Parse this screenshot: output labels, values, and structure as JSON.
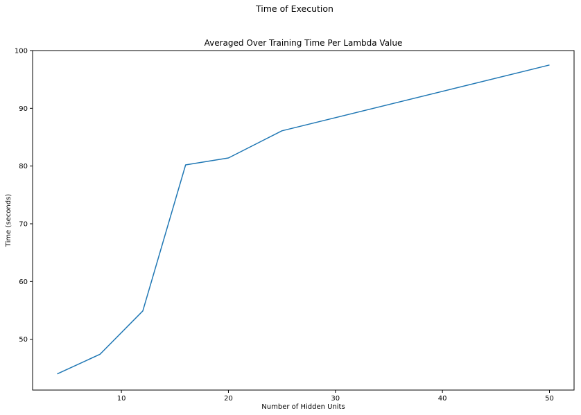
{
  "figure": {
    "suptitle": "Time of Execution"
  },
  "chart_data": {
    "type": "line",
    "title": "Averaged Over Training Time Per Lambda Value",
    "xlabel": "Number of Hidden Units",
    "ylabel": "Time (seconds)",
    "xlim": [
      1.7,
      52.3
    ],
    "ylim": [
      41.2,
      100
    ],
    "xticks": [
      10,
      20,
      30,
      40,
      50
    ],
    "yticks": [
      50,
      60,
      70,
      80,
      90,
      100
    ],
    "grid": false,
    "series": [
      {
        "color": "#1f77b4",
        "x": [
          4,
          8,
          12,
          16,
          20,
          25,
          50
        ],
        "y": [
          44.0,
          47.4,
          54.9,
          80.2,
          81.4,
          86.1,
          97.5
        ]
      }
    ]
  }
}
